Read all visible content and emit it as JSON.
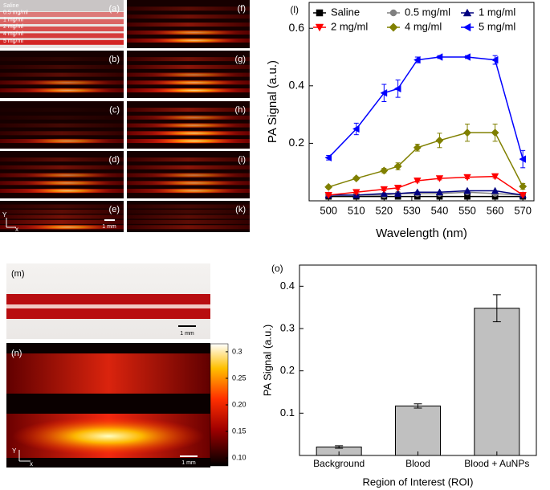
{
  "image_panels": {
    "labels": [
      "(a)",
      "(b)",
      "(c)",
      "(d)",
      "(e)",
      "(f)",
      "(g)",
      "(h)",
      "(i)",
      "(k)"
    ],
    "concentrations": [
      "Saline",
      "0.5 mg/ml",
      "1 mg/ml",
      "2 mg/ml",
      "4 mg/ml",
      "5 mg/ml"
    ],
    "axis_y": "Y",
    "axis_x": "x",
    "scale_bar": "1 mm"
  },
  "mn_panels": {
    "m_label": "(m)",
    "n_label": "(n)",
    "scale_bar_m": "1 mm",
    "scale_bar_n": "1 mm",
    "axis_y": "Y",
    "axis_x": "x"
  },
  "colorbar": {
    "lim": [
      0.085,
      0.315
    ],
    "ticks": [
      0.3,
      0.25,
      {
        "value": 0.2,
        "label": "0.20"
      },
      0.15,
      {
        "value": 0.1,
        "label": "0.10"
      }
    ]
  },
  "chart_data": [
    {
      "type": "line",
      "panel_label": "(l)",
      "x_label": "Wavelength (nm)",
      "y_label": "PA Signal (a.u.)",
      "x": [
        500,
        510,
        520,
        525,
        532,
        540,
        550,
        560,
        570
      ],
      "xlim": [
        493,
        574
      ],
      "ylim": [
        0,
        0.69
      ],
      "xticks": [
        500,
        510,
        520,
        530,
        540,
        550,
        560,
        570
      ],
      "yticks": [
        0.2,
        0.4,
        0.6
      ],
      "legend": "top",
      "series": [
        {
          "name": "Saline",
          "color": "#000000",
          "marker": "square",
          "values": [
            0.015,
            0.015,
            0.015,
            0.015,
            0.015,
            0.015,
            0.015,
            0.015,
            0.015
          ]
        },
        {
          "name": "0.5 mg/ml",
          "color": "#808080",
          "marker": "circle",
          "values": [
            0.02,
            0.02,
            0.02,
            0.025,
            0.025,
            0.025,
            0.03,
            0.025,
            0.02
          ]
        },
        {
          "name": "1 mg/ml",
          "color": "#000080",
          "marker": "triangle-up",
          "values": [
            0.02,
            0.02,
            0.025,
            0.025,
            0.03,
            0.03,
            0.035,
            0.035,
            0.02
          ]
        },
        {
          "name": "2 mg/ml",
          "color": "#ff0000",
          "marker": "triangle-down",
          "values": [
            0.02,
            0.03,
            0.04,
            0.045,
            0.07,
            0.078,
            0.082,
            0.085,
            0.02
          ],
          "errors": [
            0.003,
            0.005,
            0.005,
            0.005,
            0.005,
            0.005,
            0.005,
            0.006,
            0.003
          ]
        },
        {
          "name": "4 mg/ml",
          "color": "#808000",
          "marker": "diamond",
          "values": [
            0.048,
            0.078,
            0.105,
            0.12,
            0.185,
            0.21,
            0.237,
            0.237,
            0.05
          ],
          "errors": [
            0.005,
            0.005,
            0.008,
            0.012,
            0.012,
            0.025,
            0.03,
            0.03,
            0.01
          ]
        },
        {
          "name": "5 mg/ml",
          "color": "#0000ff",
          "marker": "triangle-left",
          "values": [
            0.15,
            0.25,
            0.375,
            0.39,
            0.49,
            0.5,
            0.5,
            0.49,
            0.145
          ],
          "errors": [
            0.008,
            0.02,
            0.03,
            0.03,
            0.01,
            0.005,
            0.005,
            0.015,
            0.03
          ]
        }
      ]
    },
    {
      "type": "bar",
      "panel_label": "(o)",
      "x_label": "Region of Interest (ROI)",
      "y_label": "PA Signal (a.u.)",
      "categories": [
        "Background",
        "Blood",
        "Blood + AuNPs"
      ],
      "values": [
        0.02,
        0.117,
        0.348
      ],
      "errors": [
        0.003,
        0.005,
        0.032
      ],
      "color": "#c0c0c0",
      "ylim": [
        0,
        0.45
      ],
      "yticks": [
        0.1,
        0.2,
        0.3,
        0.4
      ]
    }
  ]
}
